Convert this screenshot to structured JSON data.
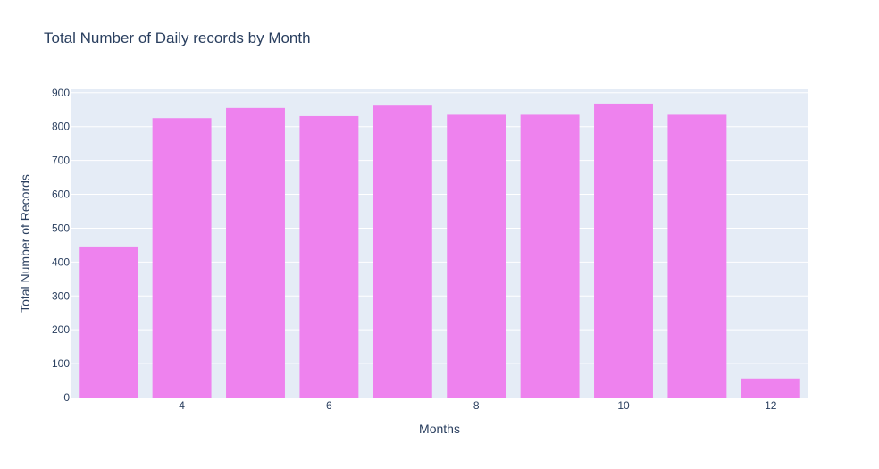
{
  "chart_data": {
    "type": "bar",
    "title": "Total Number of Daily records by Month",
    "xlabel": "Months",
    "ylabel": "Total Number of Records",
    "x": [
      3,
      4,
      5,
      6,
      7,
      8,
      9,
      10,
      11,
      12
    ],
    "values": [
      446,
      825,
      855,
      831,
      862,
      835,
      835,
      868,
      835,
      56
    ],
    "x_tick_labels": [
      "4",
      "6",
      "8",
      "10",
      "12"
    ],
    "y_tick_labels": [
      "0",
      "100",
      "200",
      "300",
      "400",
      "500",
      "600",
      "700",
      "800",
      "900"
    ],
    "ylim": [
      0,
      910
    ],
    "grid": true,
    "colors": {
      "bar": "#ee82ee",
      "plot_bg": "#e5ecf6",
      "grid": "#ffffff",
      "text": "#2a3f5f"
    }
  }
}
